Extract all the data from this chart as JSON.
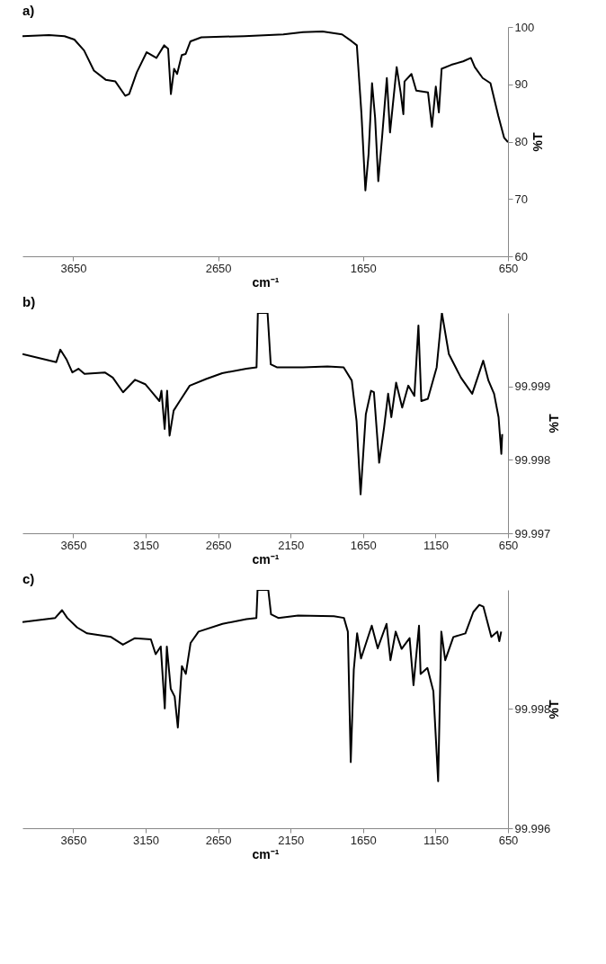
{
  "chart_data": [
    {
      "type": "line",
      "title": "a)",
      "xlabel": "cm⁻¹",
      "ylabel": "%T",
      "color": "#000000",
      "xlim": [
        4000,
        650
      ],
      "xticks": [
        3650,
        2650,
        1650,
        650
      ],
      "ylim": [
        60,
        100
      ],
      "yticks": [
        60,
        70,
        80,
        90,
        100
      ],
      "x": [
        4000,
        3817,
        3710,
        3642,
        3575,
        3507,
        3426,
        3359,
        3291,
        3264,
        3211,
        3143,
        3076,
        3022,
        2995,
        2976,
        2954,
        2933,
        2901,
        2874,
        2841,
        2766,
        2469,
        2200,
        2065,
        1930,
        1795,
        1728,
        1693,
        1661,
        1634,
        1612,
        1588,
        1567,
        1545,
        1518,
        1486,
        1464,
        1418,
        1391,
        1372,
        1364,
        1316,
        1283,
        1202,
        1175,
        1148,
        1127,
        1108,
        1041,
        960,
        906,
        879,
        825,
        771,
        717,
        677,
        650
      ],
      "values": [
        98.4,
        98.6,
        98.4,
        97.8,
        95.9,
        92.4,
        90.8,
        90.5,
        88.0,
        88.3,
        92.1,
        95.6,
        94.6,
        96.8,
        96.2,
        88.3,
        92.7,
        91.8,
        95.1,
        95.3,
        97.5,
        98.2,
        98.4,
        98.7,
        99.1,
        99.2,
        98.7,
        97.5,
        96.8,
        84.8,
        71.5,
        77.8,
        90.2,
        84.2,
        73.1,
        81.0,
        91.1,
        81.6,
        93.0,
        88.6,
        84.8,
        90.5,
        91.8,
        88.9,
        88.6,
        82.6,
        89.6,
        85.1,
        92.7,
        93.4,
        94.0,
        94.6,
        93.0,
        91.1,
        90.2,
        84.5,
        80.7,
        79.9
      ]
    },
    {
      "type": "line",
      "title": "b)",
      "xlabel": "cm⁻¹",
      "ylabel": "%T",
      "color": "#000000",
      "xlim": [
        4000,
        650
      ],
      "xticks": [
        3650,
        3150,
        2650,
        2150,
        1650,
        1150,
        650
      ],
      "ylim": [
        99.997,
        100
      ],
      "yticks": [
        99.997,
        99.998,
        99.999
      ],
      "x": [
        4000,
        3767,
        3739,
        3697,
        3656,
        3614,
        3572,
        3432,
        3377,
        3306,
        3223,
        3153,
        3097,
        3055,
        3041,
        3019,
        3002,
        2985,
        2957,
        2915,
        2846,
        2734,
        2622,
        2455,
        2385,
        2376,
        2309,
        2287,
        2245,
        2064,
        1896,
        1784,
        1728,
        1695,
        1667,
        1631,
        1595,
        1575,
        1539,
        1505,
        1477,
        1455,
        1422,
        1380,
        1338,
        1296,
        1268,
        1248,
        1203,
        1142,
        1106,
        1058,
        975,
        897,
        821,
        785,
        746,
        715,
        696,
        690
      ],
      "values": [
        99.99944,
        99.99933,
        99.9995,
        99.99937,
        99.99919,
        99.99924,
        99.99917,
        99.99919,
        99.99912,
        99.99892,
        99.99909,
        99.99903,
        99.9989,
        99.9988,
        99.99894,
        99.99842,
        99.99894,
        99.99833,
        99.99867,
        99.9988,
        99.99901,
        99.9991,
        99.99918,
        99.99924,
        99.99926,
        100,
        100,
        99.9993,
        99.99926,
        99.99926,
        99.99927,
        99.99926,
        99.99908,
        99.99853,
        99.99753,
        99.99862,
        99.99894,
        99.99892,
        99.99796,
        99.99844,
        99.9989,
        99.99858,
        99.99905,
        99.99871,
        99.99901,
        99.99887,
        99.99983,
        99.9988,
        99.99883,
        99.99926,
        100,
        99.99944,
        99.99912,
        99.9989,
        99.99935,
        99.99908,
        99.9989,
        99.99858,
        99.99808,
        99.99835
      ]
    },
    {
      "type": "line",
      "title": "c)",
      "xlabel": "cm⁻¹",
      "ylabel": "%T",
      "color": "#000000",
      "xlim": [
        4000,
        650
      ],
      "xticks": [
        3650,
        3150,
        2650,
        2150,
        1650,
        1150,
        650
      ],
      "ylim": [
        99.996,
        100
      ],
      "yticks": [
        99.996,
        99.998
      ],
      "x": [
        4000,
        3774,
        3727,
        3691,
        3623,
        3554,
        3389,
        3307,
        3224,
        3114,
        3081,
        3046,
        3018,
        3004,
        2977,
        2950,
        2928,
        2900,
        2873,
        2840,
        2785,
        2620,
        2455,
        2386,
        2378,
        2304,
        2285,
        2235,
        2098,
        1851,
        1782,
        1755,
        1735,
        1714,
        1691,
        1664,
        1590,
        1549,
        1488,
        1461,
        1425,
        1384,
        1329,
        1302,
        1264,
        1253,
        1206,
        1165,
        1132,
        1110,
        1083,
        1027,
        944,
        889,
        848,
        820,
        765,
        724,
        710,
        697
      ],
      "values": [
        99.99946,
        99.99953,
        99.99966,
        99.99953,
        99.99937,
        99.99927,
        99.99921,
        99.99908,
        99.99919,
        99.99917,
        99.99892,
        99.99905,
        99.99801,
        99.99905,
        99.99834,
        99.99821,
        99.99769,
        99.99872,
        99.99859,
        99.99911,
        99.9993,
        99.99943,
        99.99951,
        99.99953,
        100,
        100,
        99.99959,
        99.99953,
        99.99957,
        99.99956,
        99.99953,
        99.9993,
        99.99711,
        99.99866,
        99.99927,
        99.99885,
        99.9994,
        99.99902,
        99.99943,
        99.99882,
        99.9993,
        99.99901,
        99.99919,
        99.9984,
        99.9994,
        99.99859,
        99.99869,
        99.9983,
        99.99679,
        99.9993,
        99.99882,
        99.99921,
        99.99927,
        99.99963,
        99.99975,
        99.99972,
        99.99921,
        99.9993,
        99.99914,
        99.9993
      ]
    }
  ]
}
